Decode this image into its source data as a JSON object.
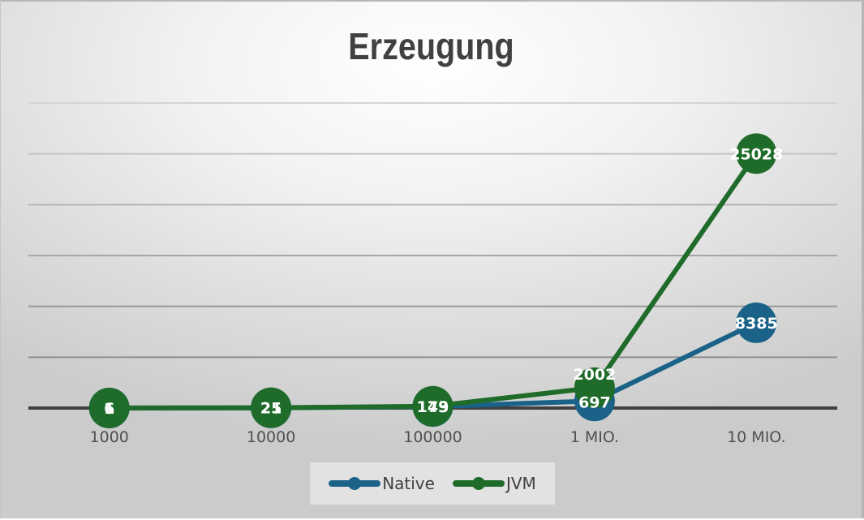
{
  "chart": {
    "title": "Erzeugung",
    "colors": {
      "native": "#1a6288",
      "jvm": "#1e6b2a",
      "baseline": "#404040",
      "grid": "#a9a9a9"
    },
    "legend": [
      {
        "name": "Native",
        "color": "#1a6288"
      },
      {
        "name": "JVM",
        "color": "#1e6b2a"
      }
    ]
  },
  "chart_data": {
    "type": "line",
    "title": "Erzeugung",
    "xlabel": "",
    "ylabel": "",
    "categories": [
      "1000",
      "10000",
      "100000",
      "1 MIO.",
      "10 MIO."
    ],
    "series": [
      {
        "name": "Native",
        "values": [
          1,
          21,
          143,
          697,
          8385
        ]
      },
      {
        "name": "JVM",
        "values": [
          6,
          25,
          179,
          2002,
          25028
        ]
      }
    ],
    "ylim": [
      0,
      30000
    ],
    "y_gridlines": [
      5000,
      10000,
      15000,
      20000,
      25000,
      30000
    ],
    "y_tick_labels_visible": false,
    "grid": true,
    "legend_position": "bottom",
    "data_labels": true
  }
}
